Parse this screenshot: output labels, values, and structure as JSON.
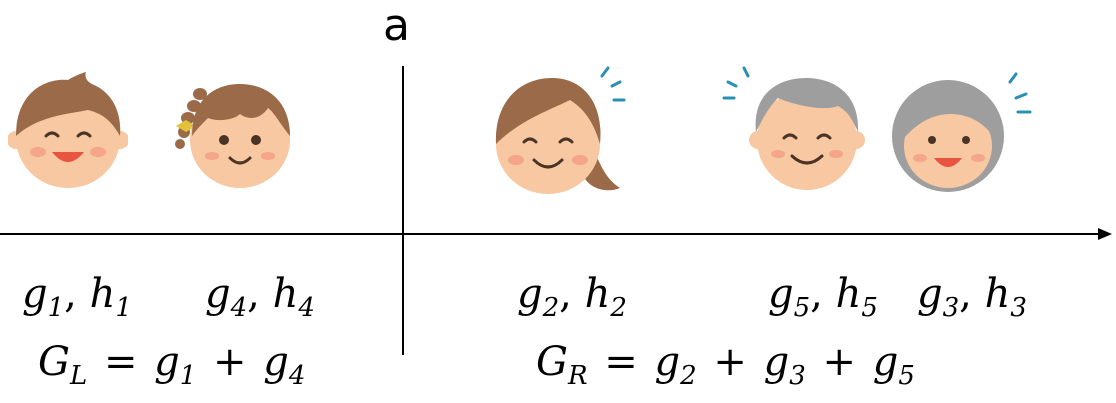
{
  "split_label": "a",
  "points": [
    {
      "id": "p1",
      "g": "g",
      "g_sub": "1",
      "h": "h",
      "h_sub": "1",
      "sep": ",",
      "face": "boy-face-icon"
    },
    {
      "id": "p4",
      "g": "g",
      "g_sub": "4",
      "h": "h",
      "h_sub": "4",
      "sep": ",",
      "face": "girl-face-icon"
    },
    {
      "id": "p2",
      "g": "g",
      "g_sub": "2",
      "h": "h",
      "h_sub": "2",
      "sep": ",",
      "face": "woman-face-icon"
    },
    {
      "id": "p5",
      "g": "g",
      "g_sub": "5",
      "h": "h",
      "h_sub": "5",
      "sep": ",",
      "face": "old-man-face-icon"
    },
    {
      "id": "p3",
      "g": "g",
      "g_sub": "3",
      "h": "h",
      "h_sub": "3",
      "sep": ",",
      "face": "old-woman-face-icon"
    }
  ],
  "left_sum": {
    "lhs": "G",
    "lhs_sub": "L",
    "eq": "=",
    "terms": [
      [
        "g",
        "1"
      ],
      [
        "g",
        "4"
      ]
    ],
    "plus": "+"
  },
  "right_sum": {
    "lhs": "G",
    "lhs_sub": "R",
    "eq": "=",
    "terms": [
      [
        "g",
        "2"
      ],
      [
        "g",
        "3"
      ],
      [
        "g",
        "5"
      ]
    ],
    "plus": "+"
  },
  "colors": {
    "skin": "#f7c8a1",
    "brown_hair": "#9b6a49",
    "gray_hair": "#9e9e9e",
    "cheek": "#f4a58a",
    "mouth": "#e8543f",
    "accent": "#2a8fb5"
  }
}
